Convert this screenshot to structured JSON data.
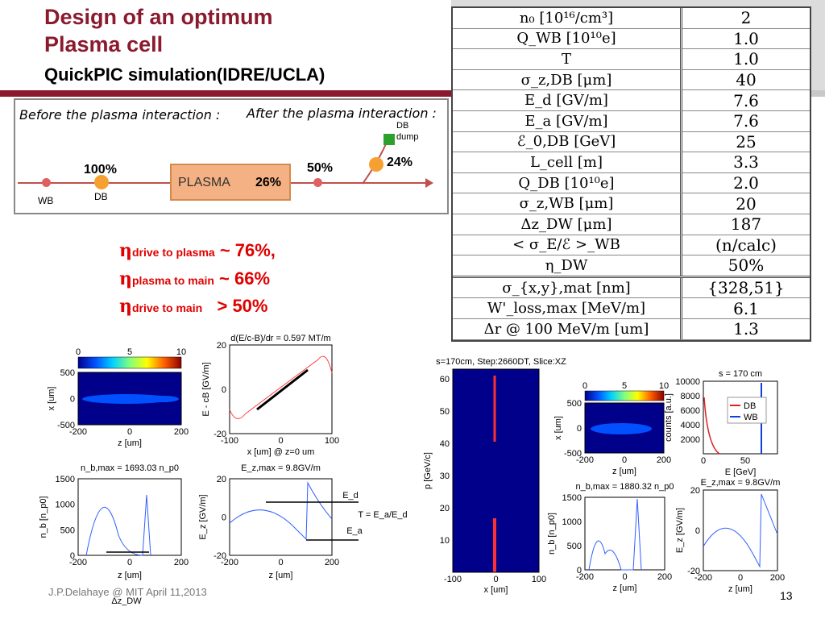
{
  "slide": {
    "title_line1": "Design of an optimum",
    "title_line2": "Plasma cell",
    "subtitle": "QuickPIC simulation(IDRE/UCLA)",
    "footer": "J.P.Delahaye @ MIT April 11,2013",
    "page_number": "13"
  },
  "params": [
    {
      "name": "n₀ [10¹⁶/cm³]",
      "value": "2"
    },
    {
      "name": "Q_WB [10¹⁰e]",
      "value": "1.0"
    },
    {
      "name": "T",
      "value": "1.0"
    },
    {
      "name": "σ_z,DB [μm]",
      "value": "40"
    },
    {
      "name": "E_d [GV/m]",
      "value": "7.6"
    },
    {
      "name": "E_a [GV/m]",
      "value": "7.6"
    },
    {
      "name": "ℰ_0,DB [GeV]",
      "value": "25"
    },
    {
      "name": "L_cell [m]",
      "value": "3.3"
    },
    {
      "name": "Q_DB [10¹⁰e]",
      "value": "2.0"
    },
    {
      "name": "σ_z,WB [μm]",
      "value": "20"
    },
    {
      "name": "Δz_DW [μm]",
      "value": "187"
    },
    {
      "name": "< σ_E/ℰ >_WB",
      "value": "(n/calc)"
    },
    {
      "name": "η_DW",
      "value": "50%"
    },
    {
      "name": "σ_{x,y},mat [nm]",
      "value": "{328,51}"
    },
    {
      "name": "W'_loss,max [MeV/m]",
      "value": "6.1"
    },
    {
      "name": "Δr @ 100 MeV/m [um]",
      "value": "1.3"
    }
  ],
  "diagram": {
    "before": "Before the plasma interaction :",
    "after": "After the plasma interaction :",
    "wb": "WB",
    "db": "DB",
    "pct_100": "100%",
    "plasma": "PLASMA",
    "pct_26": "26%",
    "pct_50": "50%",
    "pct_24": "24%",
    "db_dump_1": "DB",
    "db_dump_2": "dump"
  },
  "efficiency": [
    {
      "sub": "drive to plasma",
      "val": " ~ 76%,"
    },
    {
      "sub": "plasma to main",
      "val": " ~ 66%"
    },
    {
      "sub": "drive to main",
      "val": "   > 50%"
    }
  ],
  "plots": {
    "p1": {
      "xlabel": "z [um]",
      "ylabel": "x [um]",
      "colorbar": [
        "0",
        "5",
        "10"
      ],
      "xticks": [
        "-200",
        "0",
        "200"
      ],
      "yticks": [
        "500",
        "0",
        "-500"
      ]
    },
    "p2": {
      "title": "d(E/c-B)/dr = 0.597 MT/m",
      "xlabel": "x [um] @ z=0 um",
      "ylabel": "E - cB [GV/m]",
      "xticks": [
        "-100",
        "0",
        "100"
      ],
      "yticks": [
        "20",
        "0",
        "-20"
      ]
    },
    "p3": {
      "title": "n_b,max = 1693.03 n_p0",
      "xlabel": "z [um]",
      "ylabel": "n_b [n_p0]",
      "xticks": [
        "-200",
        "0",
        "200"
      ],
      "yticks": [
        "1500",
        "1000",
        "500",
        "0"
      ],
      "dz": "Δz_DW"
    },
    "p4": {
      "title": "E_z,max = 9.8GV/m",
      "xlabel": "z [um]",
      "ylabel": "E_z [GV/m]",
      "xticks": [
        "-200",
        "0",
        "200"
      ],
      "yticks": [
        "20",
        "0",
        "-20"
      ],
      "ed": "E_d",
      "ea": "E_a",
      "t": "T = E_a/E_d"
    },
    "p5": {
      "title": "s=170cm, Step:2660DT, Slice:XZ",
      "xlabel": "x [um]",
      "ylabel": "p [GeV/c]",
      "xticks": [
        "-100",
        "0",
        "100"
      ],
      "yticks": [
        "60",
        "50",
        "40",
        "30",
        "20",
        "10"
      ]
    },
    "p6": {
      "xlabel": "z [um]",
      "ylabel": "x [um]",
      "colorbar": [
        "0",
        "5",
        "10"
      ],
      "xticks": [
        "-200",
        "0",
        "200"
      ],
      "yticks": [
        "500",
        "0",
        "-500"
      ]
    },
    "p7": {
      "title": "s = 170 cm",
      "xlabel": "E [GeV]",
      "ylabel": "counts [a.u.]",
      "xticks": [
        "0",
        "50"
      ],
      "yticks": [
        "10000",
        "8000",
        "6000",
        "4000",
        "2000"
      ],
      "legend": [
        "DB",
        "WB"
      ]
    },
    "p8": {
      "title": "n_b,max = 1880.32 n_p0",
      "xlabel": "z [um]",
      "ylabel": "n_b [n_p0]",
      "xticks": [
        "-200",
        "0",
        "200"
      ],
      "yticks": [
        "1500",
        "1000",
        "500",
        "0"
      ]
    },
    "p9": {
      "title": "E_z,max = 9.8GV/m",
      "xlabel": "z [um]",
      "ylabel": "E_z [GV/m]",
      "xticks": [
        "-200",
        "0",
        "200"
      ],
      "yticks": [
        "20",
        "0",
        "-20"
      ]
    }
  },
  "colors": {
    "title": "#8b1a2e",
    "eta": "#e00000",
    "highlight": "#ff78e6",
    "plasma": "#f4b183",
    "db_line": "#e02020",
    "wb_line": "#1040e0"
  }
}
